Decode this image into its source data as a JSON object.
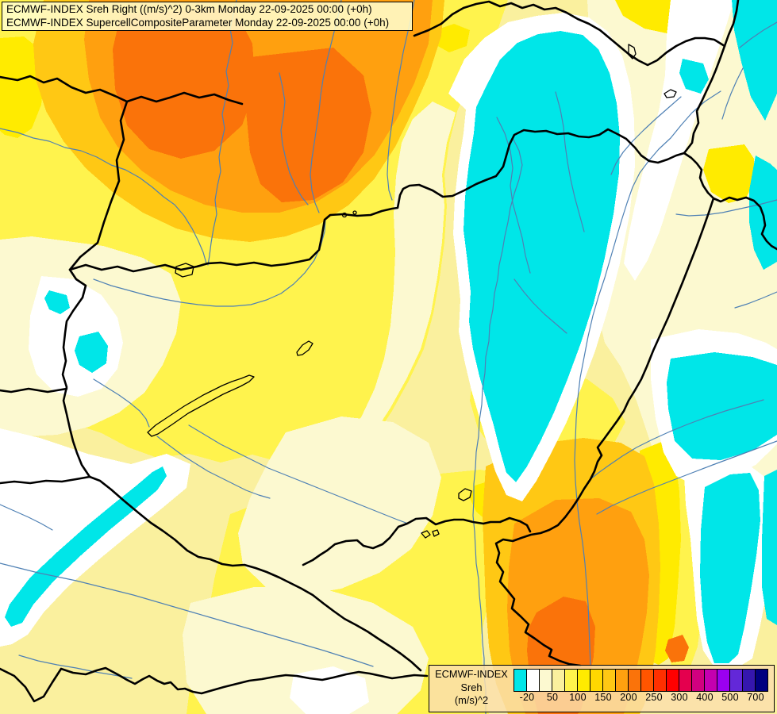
{
  "title_box": {
    "line1": "ECMWF-INDEX Sreh Right ((m/s)^2) 0-3km Monday 22-09-2025 00:00 (+0h)",
    "line2": "ECMWF-INDEX SupercellCompositeParameter Monday 22-09-2025 00:00 (+0h)"
  },
  "legend": {
    "product": "ECMWF-INDEX",
    "parameter": "Sreh",
    "units": "(m/s)^2",
    "tick_labels": [
      "-20",
      "50",
      "100",
      "150",
      "200",
      "250",
      "300",
      "400",
      "500",
      "700"
    ],
    "swatch_colors": [
      "#00E6E8",
      "#FFFFFF",
      "#FCF9D0",
      "#FAF09E",
      "#FFF34D",
      "#FFEB00",
      "#FFD800",
      "#FFC814",
      "#FFA00F",
      "#FA730A",
      "#FF5500",
      "#FF3000",
      "#FF0000",
      "#E4004E",
      "#D1007F",
      "#C400B0",
      "#9B00F0",
      "#6328D8",
      "#3517AE",
      "#000080"
    ]
  },
  "map": {
    "palette": {
      "pale": "#FAF09E",
      "cream": "#FCF9D0",
      "white": "#FFFFFF",
      "cyan": "#00E6E8",
      "yellow": "#FFF34D",
      "bright_yellow": "#FFEB00",
      "gold": "#FFC814",
      "orange": "#FFA00F",
      "deep_orange": "#FA730A"
    },
    "border_color": "#000000",
    "river_color": "#4E80B4",
    "lake_outline_color": "#000000"
  }
}
